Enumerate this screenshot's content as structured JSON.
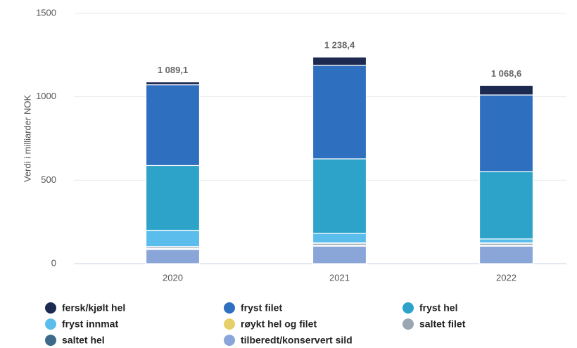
{
  "chart_data": {
    "type": "stacked_bar",
    "y_label": "Verdi i milliarder NOK",
    "categories": [
      "2020",
      "2021",
      "2022"
    ],
    "ylim": [
      0,
      1500
    ],
    "yticks": [
      0,
      500,
      1000,
      1500
    ],
    "grid": true,
    "series": [
      {
        "name": "fersk/kjølt hel",
        "color": "#1c2a52",
        "values": [
          17.1,
          50.4,
          57.6
        ]
      },
      {
        "name": "fryst filet",
        "color": "#2f6fc0",
        "values": [
          484,
          560,
          459
        ]
      },
      {
        "name": "fryst hel",
        "color": "#2ea3c9",
        "values": [
          388,
          447,
          404
        ]
      },
      {
        "name": "fryst innmat",
        "color": "#5bbdeb",
        "values": [
          98,
          56,
          23
        ]
      },
      {
        "name": "røykt hel og filet",
        "color": "#e6cf6a",
        "values": [
          2,
          3,
          3
        ]
      },
      {
        "name": "saltet filet",
        "color": "#9aa7b3",
        "values": [
          10,
          12,
          12
        ]
      },
      {
        "name": "saltet hel",
        "color": "#3d6a8a",
        "values": [
          5,
          5,
          5
        ]
      },
      {
        "name": "tilberedt/konservert sild",
        "color": "#8aa5d8",
        "values": [
          85,
          105,
          105
        ]
      }
    ],
    "totals": {
      "values": [
        1089.1,
        1238.4,
        1068.6
      ],
      "value_labels": [
        "1 089,1",
        "1 238,4",
        "1 068,6"
      ]
    }
  }
}
